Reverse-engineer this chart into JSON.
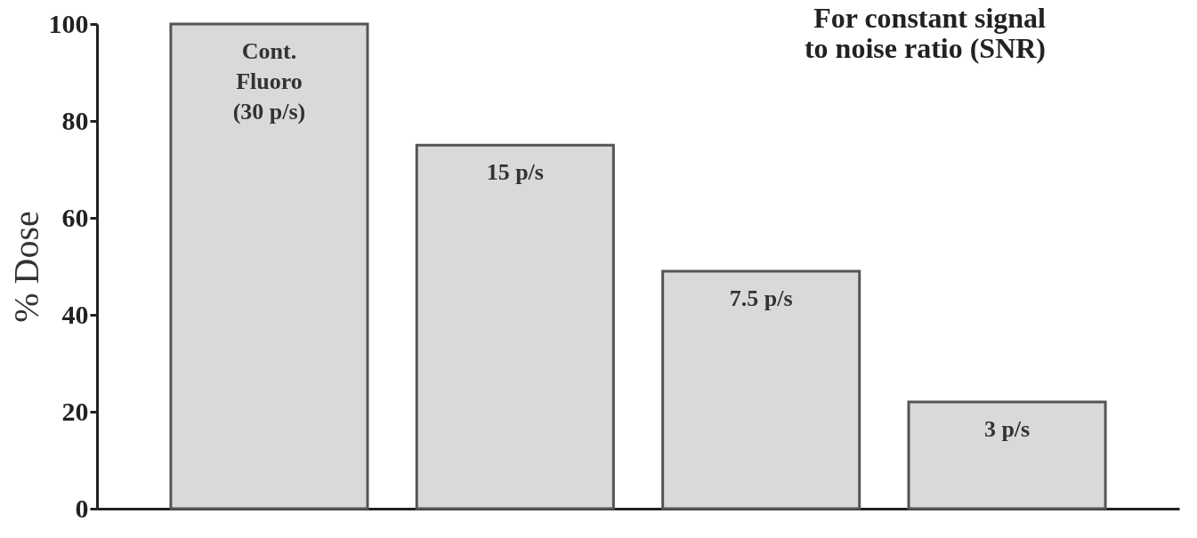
{
  "chart_data": {
    "type": "bar",
    "title": "For constant signal\nto noise ratio (SNR)",
    "ylabel": "% Dose",
    "categories": [
      "Cont.\nFluoro\n(30 p/s)",
      "15 p/s",
      "7.5 p/s",
      "3 p/s"
    ],
    "values": [
      100,
      75,
      49,
      22
    ],
    "color": "#d9d9d9",
    "ylim": [
      0,
      100
    ],
    "yticks": [
      0,
      20,
      40,
      60,
      80,
      100
    ],
    "grid": false
  }
}
